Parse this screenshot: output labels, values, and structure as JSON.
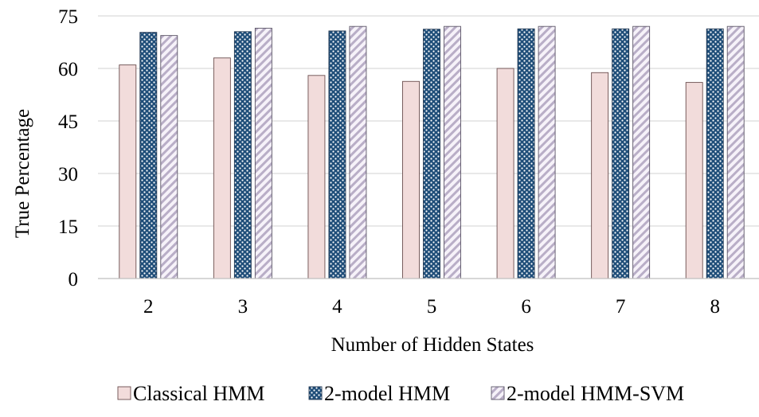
{
  "chart_data": {
    "type": "bar",
    "title": "",
    "xlabel": "Number of Hidden States",
    "ylabel": "True Percentage",
    "ylim": [
      0,
      75
    ],
    "yticks": [
      0,
      15,
      30,
      45,
      60,
      75
    ],
    "grid": true,
    "legend_position": "bottom",
    "categories": [
      "2",
      "3",
      "4",
      "5",
      "6",
      "7",
      "8"
    ],
    "series": [
      {
        "name": "Classical HMM",
        "values": [
          61,
          63,
          58,
          56.3,
          60,
          58.8,
          56
        ],
        "pattern": "solid",
        "color": "#f2dcdb",
        "stroke": "#6b4e4e"
      },
      {
        "name": "2-model HMM",
        "values": [
          70.3,
          70.5,
          70.7,
          71.2,
          71.3,
          71.3,
          71.3
        ],
        "pattern": "dots",
        "color": "#1f4e79",
        "stroke": "#1f3550"
      },
      {
        "name": "2-model HMM-SVM",
        "values": [
          69.4,
          71.5,
          72,
          72,
          72,
          72,
          72
        ],
        "pattern": "diagonal-stripes",
        "color": "#ddd3e6",
        "stroke": "#5b5566"
      }
    ]
  }
}
